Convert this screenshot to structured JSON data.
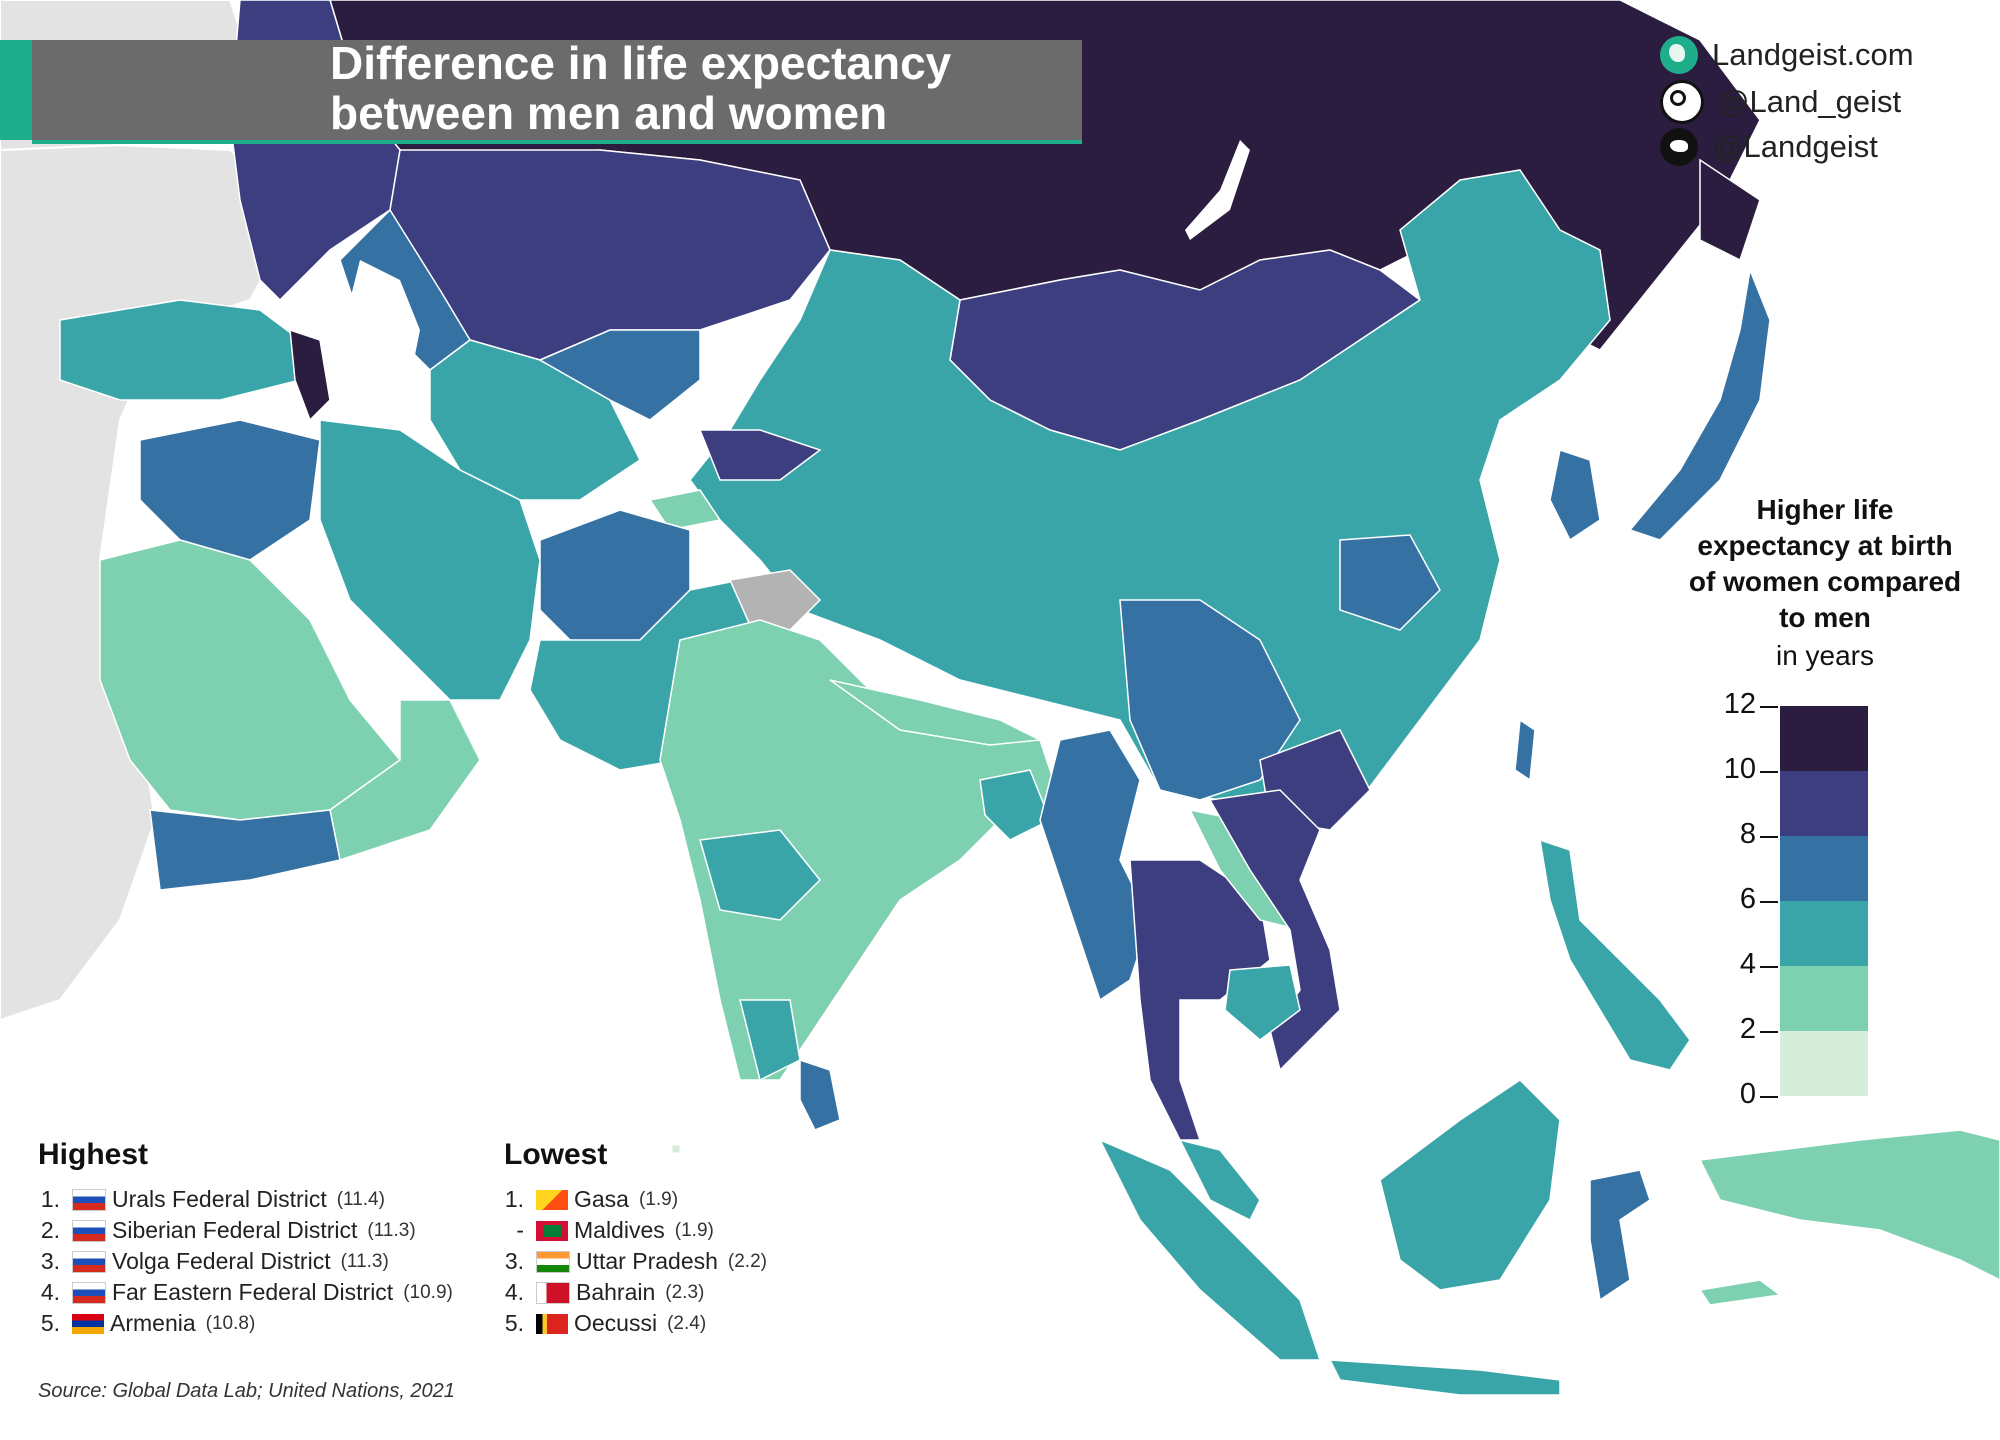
{
  "title": {
    "line1": "Difference in life expectancy",
    "line2": "between men and women"
  },
  "social": {
    "website": "Landgeist.com",
    "instagram": "@Land_geist",
    "twitter": "@Landgeist",
    "icons": [
      "globe-icon",
      "instagram-icon",
      "twitter-icon"
    ]
  },
  "legend": {
    "title_lines": [
      "Higher life",
      "expectancy at birth",
      "of women compared",
      "to men"
    ],
    "unit": "in years",
    "ticks": [
      "12",
      "10",
      "8",
      "6",
      "4",
      "2",
      "0"
    ],
    "bins": [
      {
        "range": [
          10,
          12
        ],
        "color": "#2b1d3f"
      },
      {
        "range": [
          8,
          10
        ],
        "color": "#3d3e7f"
      },
      {
        "range": [
          6,
          8
        ],
        "color": "#3571a3"
      },
      {
        "range": [
          4,
          6
        ],
        "color": "#3aa5a9"
      },
      {
        "range": [
          2,
          4
        ],
        "color": "#7dd1b0"
      },
      {
        "range": [
          0,
          2
        ],
        "color": "#d6eddb"
      }
    ],
    "no_data_color": "#b3b3b3"
  },
  "highest": {
    "title": "Highest",
    "items": [
      {
        "rank": "1.",
        "name": "Urals Federal District",
        "value": "(11.4)",
        "flag": "russia"
      },
      {
        "rank": "2.",
        "name": "Siberian Federal District",
        "value": "(11.3)",
        "flag": "russia"
      },
      {
        "rank": "3.",
        "name": "Volga Federal District",
        "value": "(11.3)",
        "flag": "russia"
      },
      {
        "rank": "4.",
        "name": "Far Eastern Federal District",
        "value": "(10.9)",
        "flag": "russia"
      },
      {
        "rank": "5.",
        "name": "Armenia",
        "value": "(10.8)",
        "flag": "armenia"
      }
    ]
  },
  "lowest": {
    "title": "Lowest",
    "items": [
      {
        "rank": "1.",
        "name": "Gasa",
        "value": "(1.9)",
        "flag": "bhutan"
      },
      {
        "rank": "-",
        "name": "Maldives",
        "value": "(1.9)",
        "flag": "maldives"
      },
      {
        "rank": "3.",
        "name": "Uttar Pradesh",
        "value": "(2.2)",
        "flag": "india"
      },
      {
        "rank": "4.",
        "name": "Bahrain",
        "value": "(2.3)",
        "flag": "bahrain"
      },
      {
        "rank": "5.",
        "name": "Oecussi",
        "value": "(2.4)",
        "flag": "timor-leste"
      }
    ]
  },
  "source": "Source: Global Data Lab; United Nations, 2021",
  "colors": {
    "title_bg": "#6b6b6b",
    "accent": "#1fae8c",
    "outside_land": "#e3e3e3",
    "sea": "#ffffff"
  }
}
